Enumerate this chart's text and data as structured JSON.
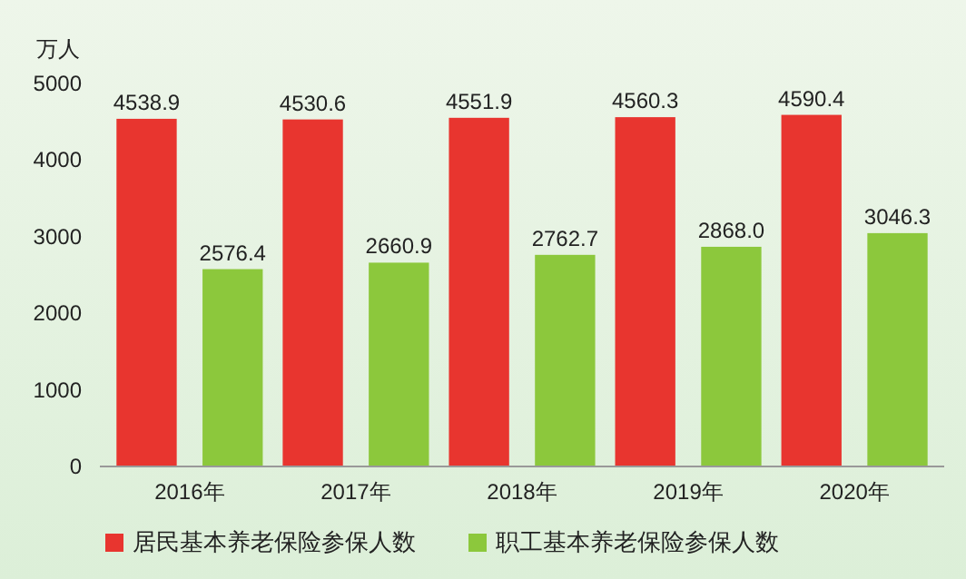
{
  "chart_data": {
    "type": "bar",
    "ylabel": "万人",
    "categories": [
      "2016年",
      "2017年",
      "2018年",
      "2019年",
      "2020年"
    ],
    "series": [
      {
        "name": "居民基本养老保险参保人数",
        "color": "#e8352f",
        "values": [
          4538.9,
          4530.6,
          4551.9,
          4560.3,
          4590.4
        ],
        "value_labels": [
          "4538.9",
          "4530.6",
          "4551.9",
          "4560.3",
          "4590.4"
        ]
      },
      {
        "name": "职工基本养老保险参保人数",
        "color": "#8cc83c",
        "values": [
          2576.4,
          2660.9,
          2762.7,
          2868,
          3046.3
        ],
        "value_labels": [
          "2576.4",
          "2660.9",
          "2762.7",
          "2868.0",
          "3046.3"
        ]
      }
    ],
    "ylim": [
      0,
      5000
    ],
    "yticks": [
      0,
      1000,
      2000,
      3000,
      4000,
      5000
    ],
    "legend": "bottom",
    "grid": false
  }
}
